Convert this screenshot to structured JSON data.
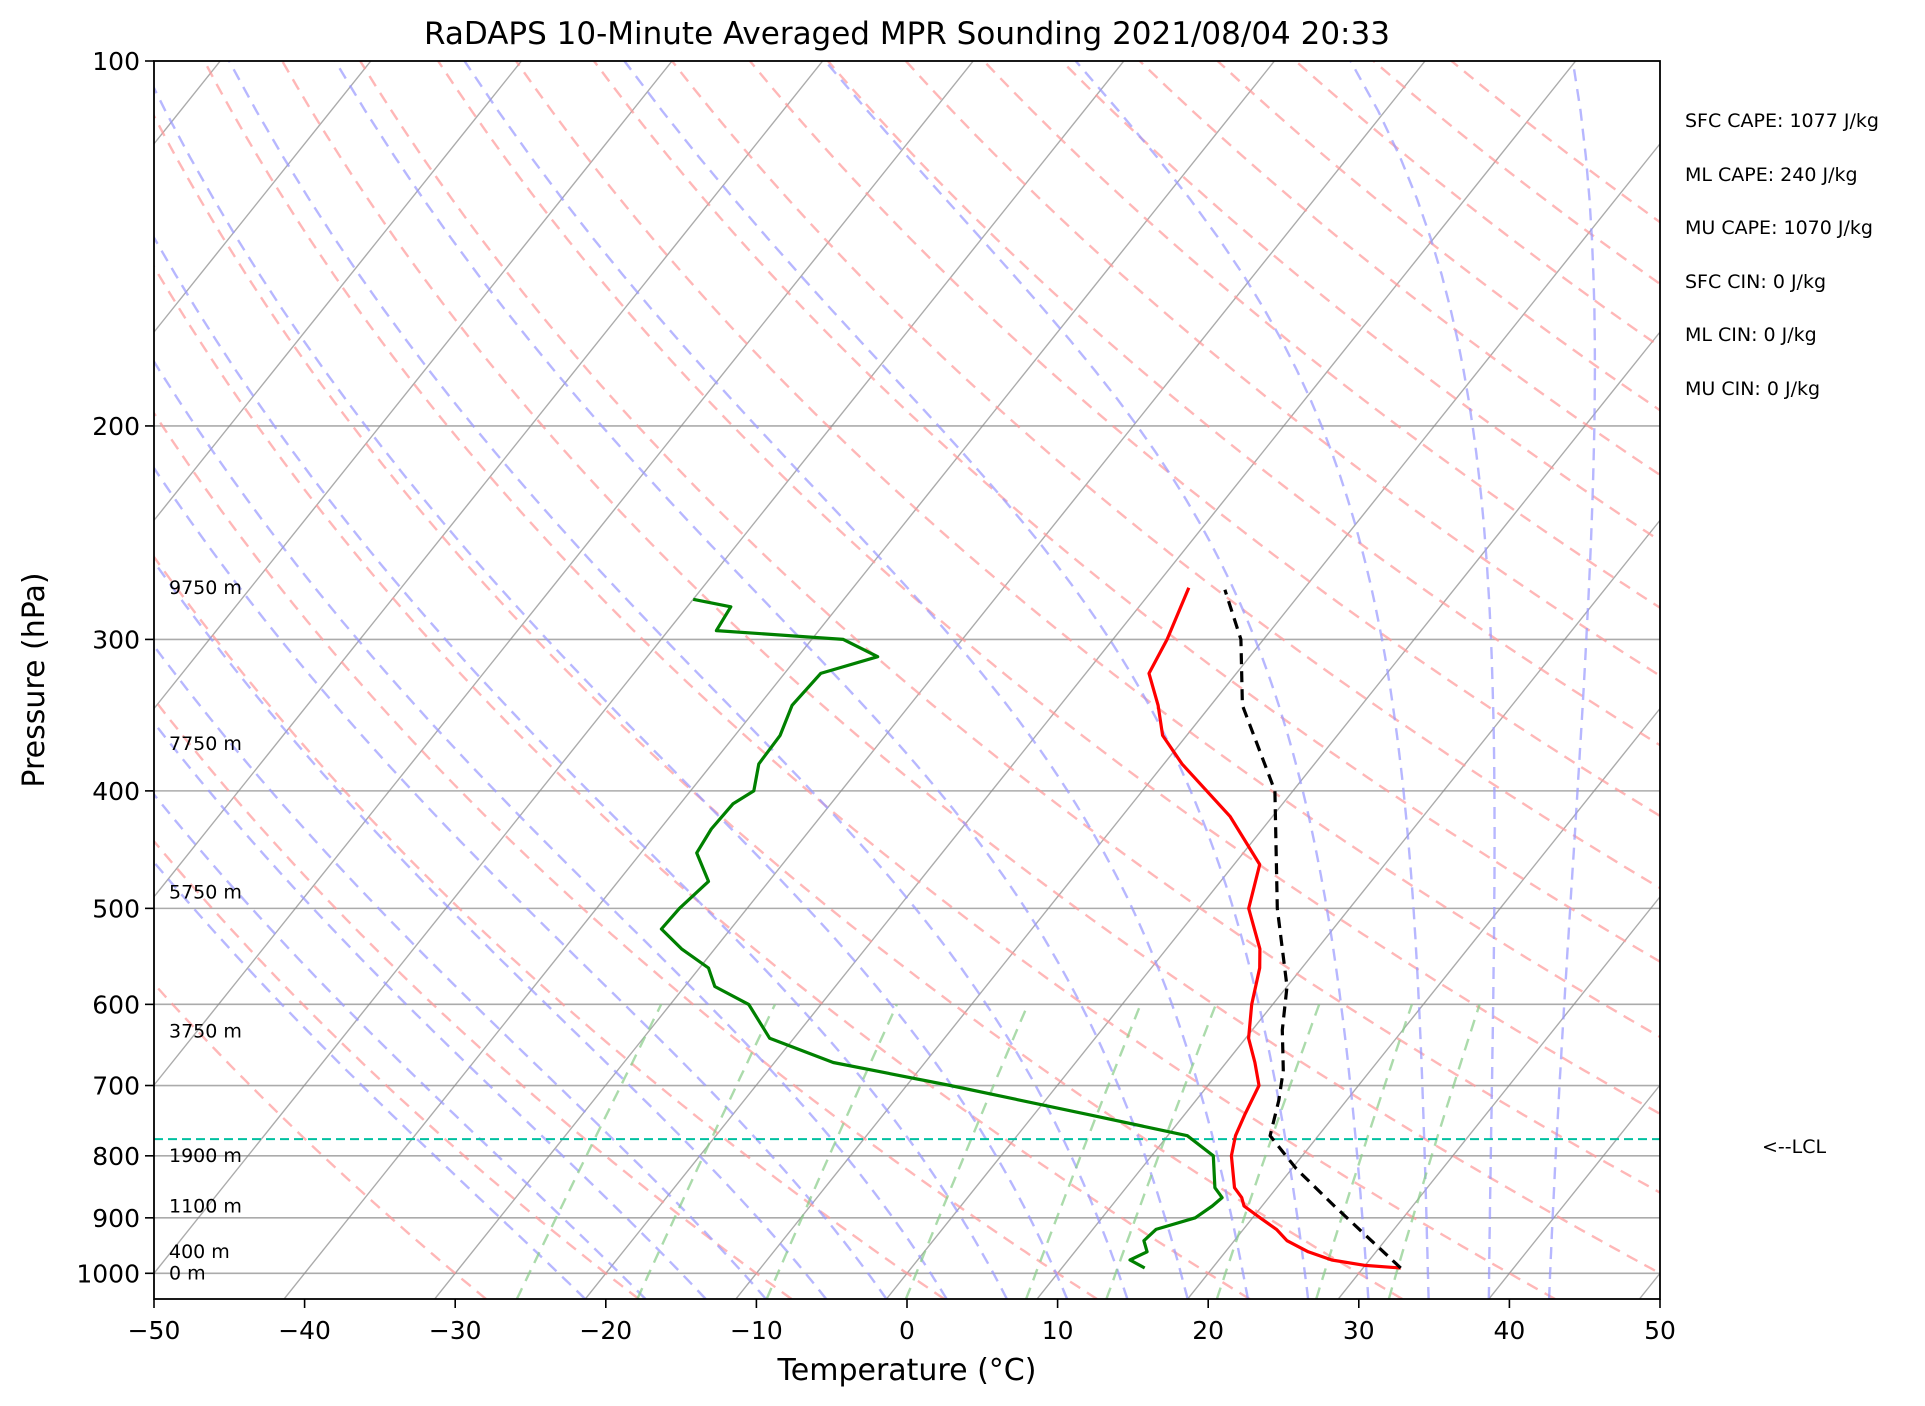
{
  "chart_data": {
    "type": "line",
    "title": "RaDAPS 10-Minute Averaged MPR Sounding 2021/08/04 20:33",
    "xlabel": "Temperature (°C)",
    "ylabel": "Pressure (hPa)",
    "xlim": [
      -50,
      50
    ],
    "ylim": [
      1050,
      100
    ],
    "y_scale": "log",
    "x_ticks": [
      -50,
      -40,
      -30,
      -20,
      -10,
      0,
      10,
      20,
      30,
      40,
      50
    ],
    "x_tick_labels": [
      "−50",
      "−40",
      "−30",
      "−20",
      "−10",
      "0",
      "10",
      "20",
      "30",
      "40",
      "50"
    ],
    "y_ticks": [
      100,
      200,
      300,
      400,
      500,
      600,
      700,
      800,
      900,
      1000
    ],
    "y_tick_labels": [
      "100",
      "200",
      "300",
      "400",
      "500",
      "600",
      "700",
      "800",
      "900",
      "1000"
    ],
    "grid": true,
    "skew": "skew-T log-P",
    "series": [
      {
        "color": "#ff0000",
        "p": [
          990,
          985,
          975,
          960,
          940,
          920,
          900,
          880,
          866,
          850,
          800,
          770,
          740,
          700,
          670,
          640,
          600,
          560,
          540,
          500,
          460,
          420,
          380,
          360,
          340,
          320,
          300,
          272
        ],
        "t": [
          32.5,
          30.0,
          27.5,
          25.5,
          23.5,
          22.2,
          20.5,
          18.8,
          18.2,
          17.2,
          15.3,
          14.5,
          14.0,
          13.4,
          11.9,
          10.2,
          8.6,
          7.2,
          6.2,
          3.3,
          1.7,
          -2.8,
          -8.8,
          -11.6,
          -13.5,
          -15.8,
          -16.4,
          -17.7
        ]
      },
      {
        "color": "#008000",
        "p": [
          990,
          975,
          960,
          940,
          920,
          900,
          880,
          866,
          850,
          800,
          770,
          740,
          700,
          670,
          640,
          600,
          580,
          560,
          540,
          520,
          500,
          475,
          450,
          430,
          410,
          400,
          380,
          360,
          340,
          320,
          310,
          300,
          295,
          282,
          278
        ],
        "t": [
          15.5,
          14.1,
          14.8,
          14.0,
          14.2,
          16.2,
          16.7,
          16.9,
          15.9,
          14.1,
          11.3,
          3.7,
          -7.1,
          -16.1,
          -21.6,
          -24.8,
          -28.0,
          -29.4,
          -32.2,
          -34.6,
          -34.5,
          -34.0,
          -36.3,
          -36.6,
          -36.5,
          -35.8,
          -36.9,
          -37.0,
          -37.8,
          -37.6,
          -34.7,
          -37.9,
          -46.8,
          -47.1,
          -50.0
        ]
      },
      {
        "color": "#000000",
        "p": [
          990,
          880,
          820,
          770,
          720,
          680,
          630,
          580,
          500,
          400,
          340,
          300,
          273
        ],
        "t": [
          32.5,
          24.8,
          20.3,
          16.8,
          15.5,
          14.2,
          12.0,
          10.0,
          5.2,
          -1.2,
          -7.9,
          -11.5,
          -15.2
        ]
      }
    ],
    "height_labels": [
      {
        "text": "9750 m",
        "p": 272
      },
      {
        "text": "7750 m",
        "p": 366
      },
      {
        "text": "5750 m",
        "p": 485
      },
      {
        "text": "3750 m",
        "p": 632
      },
      {
        "text": "1900 m",
        "p": 800
      },
      {
        "text": "1100 m",
        "p": 881
      },
      {
        "text": "400 m",
        "p": 960
      },
      {
        "text": "0 m",
        "p": 1000
      }
    ],
    "lcl": {
      "p": 775,
      "label": "<--LCL",
      "color": "#00c0a0"
    },
    "background_lines": {
      "isotherms": {
        "color": "#888888"
      },
      "dry_adiabats": {
        "color": "#ff9999"
      },
      "moist_adiabats": {
        "color": "#9999ff"
      },
      "mixing_ratio": {
        "color": "#88cc88"
      }
    }
  },
  "stats": [
    {
      "text": "SFC CAPE: 1077 J/kg"
    },
    {
      "text": "ML CAPE: 240 J/kg"
    },
    {
      "text": "MU CAPE: 1070 J/kg"
    },
    {
      "text": "SFC CIN: 0 J/kg"
    },
    {
      "text": "ML CIN: 0 J/kg"
    },
    {
      "text": "MU CIN: 0 J/kg"
    }
  ]
}
